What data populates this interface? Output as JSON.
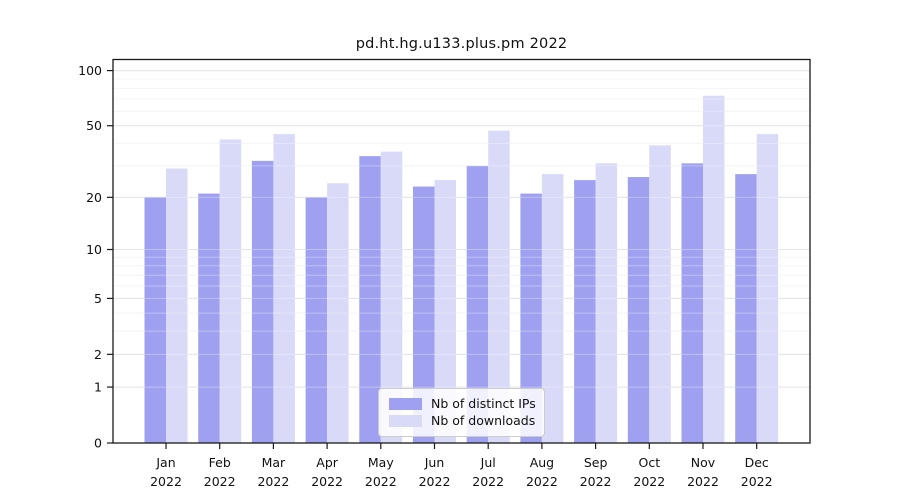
{
  "figure": {
    "title": "pd.ht.hg.u133.plus.pm 2022"
  },
  "chart_data": {
    "type": "bar",
    "title": "pd.ht.hg.u133.plus.pm 2022",
    "categories": [
      "Jan 2022",
      "Feb 2022",
      "Mar 2022",
      "Apr 2022",
      "May 2022",
      "Jun 2022",
      "Jul 2022",
      "Aug 2022",
      "Sep 2022",
      "Oct 2022",
      "Nov 2022",
      "Dec 2022"
    ],
    "series": [
      {
        "name": "Nb of distinct IPs",
        "color": "#9fa1f0",
        "values": [
          20,
          21,
          32,
          20,
          34,
          23,
          30,
          21,
          25,
          26,
          31,
          27
        ]
      },
      {
        "name": "Nb of downloads",
        "color": "#d9daf8",
        "values": [
          29,
          42,
          45,
          24,
          36,
          25,
          47,
          27,
          31,
          39,
          73,
          45
        ]
      }
    ],
    "yscale": "log1p",
    "ylim": [
      0,
      115
    ],
    "yticks": [
      0,
      1,
      2,
      5,
      10,
      20,
      50,
      100
    ],
    "minor_yticks": [
      3,
      4,
      6,
      7,
      8,
      9,
      30,
      40,
      60,
      70,
      80,
      90
    ],
    "grid": true,
    "legend_position": "lower center",
    "xlabel": "",
    "ylabel": ""
  },
  "colors": {
    "spine": "#1a1a1a",
    "major_grid": "#d9d9d9",
    "minor_grid": "#f0f0f0",
    "tick_label": "#111111"
  }
}
